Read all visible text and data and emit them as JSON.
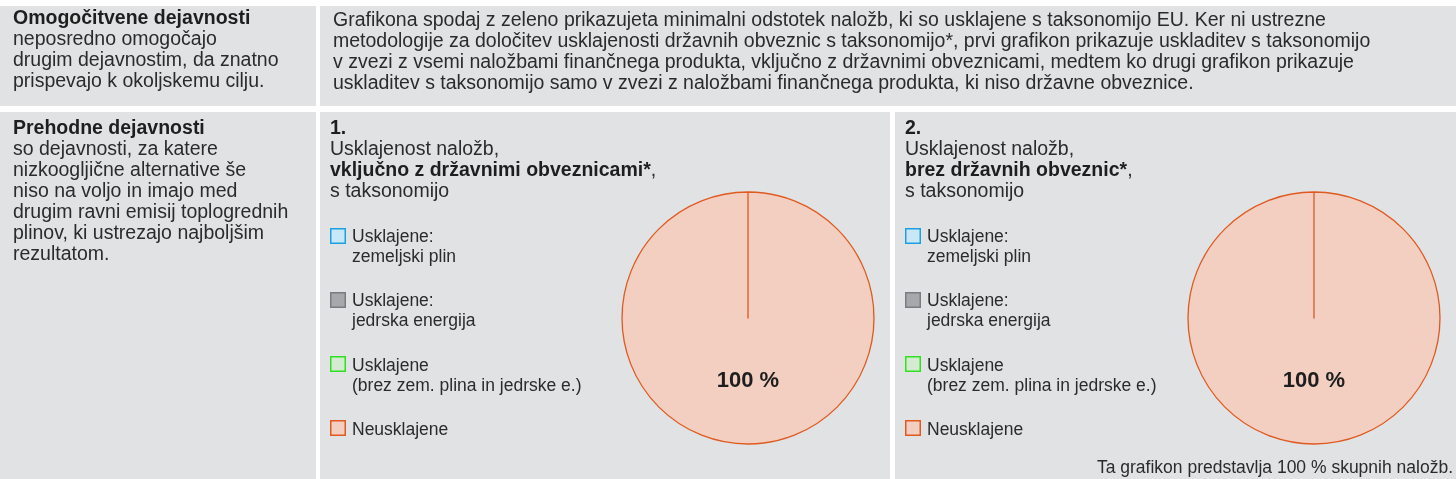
{
  "chart_data": [
    {
      "type": "other",
      "title": "Omogočitvene dejavnosti",
      "subtitle": "neposredno omogočajo\ndrugim dejavnostim, da znatno\nprispevajo k okoljskemu cilju."
    },
    {
      "type": "other",
      "annotations": [
        "Grafikona spodaj z zeleno prikazujeta minimalni odstotek naložb, ki so usklajene s taksonomijo EU. Ker ni ustrezne\nmetodologije za določitev usklajenosti državnih obveznic s taksonomijo*, prvi grafikon prikazuje uskladitev s taksonomijo\nv zvezi z vsemi naložbami finančnega produkta, vključno z državnimi obveznicami, medtem ko drugi grafikon prikazuje\nuskladitev s taksonomijo samo v zvezi z naložbami finančnega produkta, ki niso državne obveznice."
      ]
    },
    {
      "type": "other",
      "title": "Prehodne dejavnosti",
      "subtitle": "so dejavnosti, za katere\nnizkoogljične alternative še\nniso na voljo in imajo med\ndrugim ravni emisij toplogrednih\nplinov, ki ustrezajo najboljšim\nrezultatom."
    },
    {
      "type": "pie",
      "title": "1.",
      "subtitle": "Usklajenost naložb,\nvključno z državnimi obveznicami*,\ns taksonomijo",
      "categories": [
        "Usklajene:\nzemeljski plin",
        "Usklajene:\njedrska energija",
        "Usklajene\n(brez zem. plina in jedrske e.)",
        "Neusklajene"
      ],
      "values": [
        0,
        0,
        0,
        100
      ],
      "colors": [
        "#c8e8f8",
        "#a6a8ab",
        "#d4ebd2",
        "#f2cfc0"
      ],
      "value_labels": [
        null,
        null,
        null,
        "100 %"
      ],
      "legend": "left"
    },
    {
      "type": "pie",
      "title": "2.",
      "subtitle": "Usklajenost naložb,\nbrez državnih obveznic*,\ns taksonomijo",
      "categories": [
        "Usklajene:\nzemeljski plin",
        "Usklajene:\njedrska energija",
        "Usklajene\n(brez zem. plina in jedrske e.)",
        "Neusklajene"
      ],
      "values": [
        0,
        0,
        0,
        100
      ],
      "colors": [
        "#c8e8f8",
        "#a6a8ab",
        "#d4ebd2",
        "#f2cfc0"
      ],
      "value_labels": [
        null,
        null,
        null,
        "100 %"
      ],
      "legend": "left",
      "annotations": [
        "Ta grafikon predstavlja 100 % skupnih naložb."
      ]
    }
  ]
}
